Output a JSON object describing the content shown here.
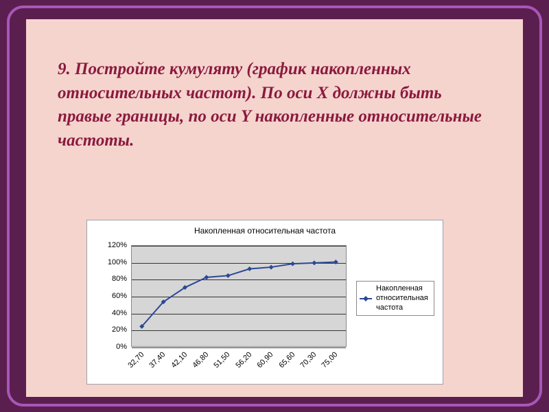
{
  "slide": {
    "title": "9. Постройте кумуляту\n(график накопленных относительных частот). По оси X должны быть правые границы, по оси Y накопленные относительные частоты."
  },
  "chart": {
    "type": "line",
    "title": "Накопленная относительная частота",
    "title_fontsize": 12,
    "x_categories": [
      "32,70",
      "37,40",
      "42,10",
      "46,80",
      "51,50",
      "56,20",
      "60,90",
      "65,60",
      "70,30",
      "75,00"
    ],
    "y_values_pct": [
      24,
      53,
      70,
      82,
      84,
      92,
      94,
      98,
      99,
      100
    ],
    "ylim": [
      0,
      120
    ],
    "y_ticks": [
      0,
      20,
      40,
      60,
      80,
      100,
      120
    ],
    "y_tick_labels": [
      "0%",
      "20%",
      "40%",
      "60%",
      "80%",
      "100%",
      "120%"
    ],
    "line_color": "#2a4894",
    "marker_fill": "#2a4894",
    "marker_shape": "diamond",
    "marker_size": 7,
    "line_width": 2,
    "plot_bg": "#d6d6d6",
    "grid_color": "#333333",
    "frame_bg": "#ffffff",
    "legend_label": "Накопленная относительная частота",
    "x_label_rotation": -45
  },
  "colors": {
    "page_bg": "#5a1f4e",
    "frame_border": "#a855b8",
    "slide_bg": "#f5d4ce",
    "title_color": "#8b1a3e"
  }
}
